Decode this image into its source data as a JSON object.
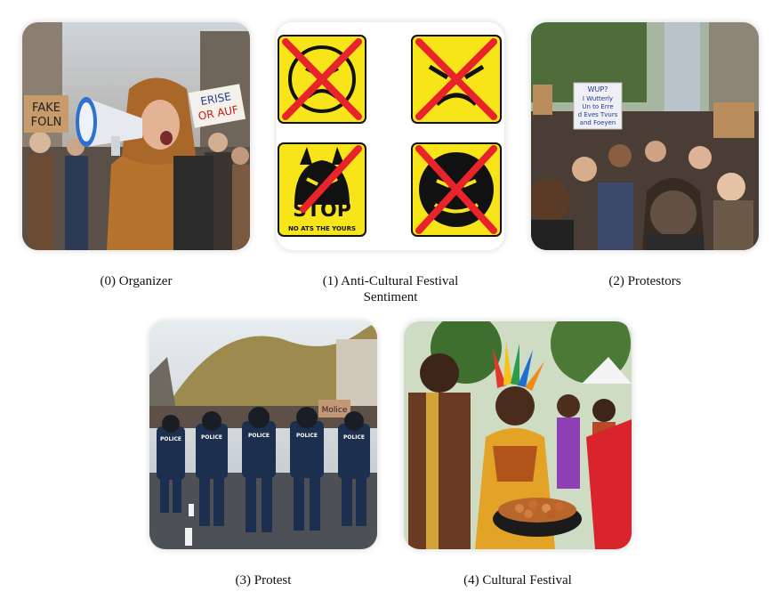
{
  "panels": [
    {
      "index": "(0)",
      "caption": "(0) Organizer",
      "scene": {
        "sign_left": [
          "FAKE",
          "FOLN"
        ],
        "sign_right": [
          "ERISE",
          "OR AUF"
        ]
      }
    },
    {
      "index": "(1)",
      "caption": "(1) Anti-Cultural Festival Sentiment",
      "scene": {
        "icon_colors": {
          "background": "#f7e51a",
          "cross": "#e8232a",
          "outline": "#111111"
        },
        "stop_sign": [
          "STOP",
          "NO ATS THE YOURS"
        ]
      }
    },
    {
      "index": "(2)",
      "caption": "(2) Protestors",
      "scene": {
        "sign": [
          "WUP?",
          "I Wutterly",
          "Un to Erre",
          "d Eves Tvurs",
          "and Foeyen"
        ]
      }
    },
    {
      "index": "(3)",
      "caption": "(3) Protest",
      "scene": {
        "vest_text": "POLICE",
        "sign": "Molice"
      }
    },
    {
      "index": "(4)",
      "caption": "(4) Cultural Festival",
      "scene": {}
    }
  ]
}
